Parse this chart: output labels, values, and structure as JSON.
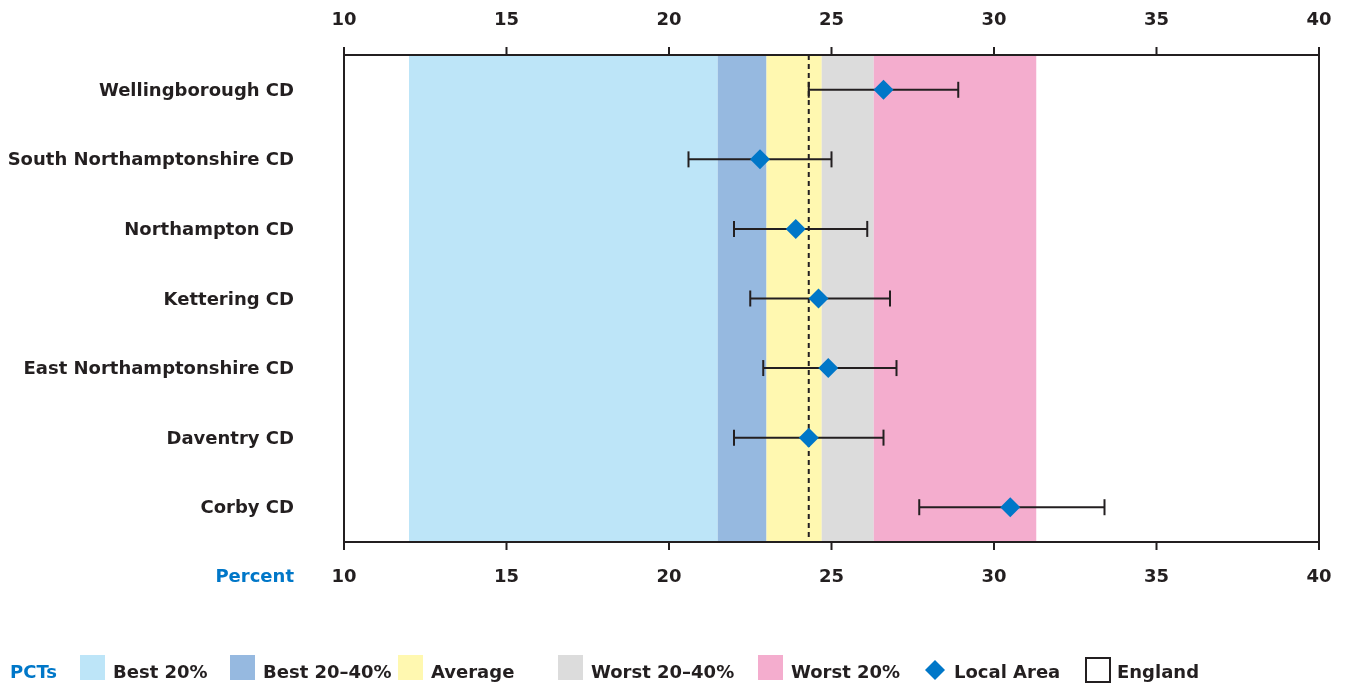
{
  "chart_data": {
    "type": "scatter",
    "orientation": "horizontal",
    "xlabel": "Percent",
    "legend_title": "PCTs",
    "legend": "bottom",
    "marker": "diamond",
    "categories": [
      "Wellingborough CD",
      "South Northamptonshire CD",
      "Northampton CD",
      "Kettering CD",
      "East Northamptonshire CD",
      "Daventry CD",
      "Corby CD"
    ],
    "series": [
      {
        "name": "Local Area",
        "color": "#0077c8",
        "values": [
          26.6,
          22.8,
          23.9,
          24.6,
          24.9,
          24.3,
          30.5
        ],
        "errors": [
          [
            24.3,
            28.9
          ],
          [
            20.6,
            25.0
          ],
          [
            22.0,
            26.1
          ],
          [
            22.5,
            26.8
          ],
          [
            22.9,
            27.0
          ],
          [
            22.0,
            26.6
          ],
          [
            27.7,
            33.4
          ]
        ]
      }
    ],
    "xlim": [
      10,
      40
    ],
    "xticks": [
      10,
      15,
      20,
      25,
      30,
      35,
      40
    ],
    "x2lim": [
      10,
      40
    ],
    "x2ticks": [
      10,
      15,
      20,
      25,
      30,
      35,
      40
    ],
    "bands": [
      {
        "axis": "x",
        "from": 12.0,
        "to": 21.5,
        "label": "Best 20%",
        "color": "#bde5f8"
      },
      {
        "axis": "x",
        "from": 21.5,
        "to": 23.0,
        "label": "Best 20–40%",
        "color": "#96b9e0"
      },
      {
        "axis": "x",
        "from": 23.0,
        "to": 24.7,
        "label": "Average",
        "color": "#fff8b0"
      },
      {
        "axis": "x",
        "from": 24.7,
        "to": 26.3,
        "label": "Worst 20–40%",
        "color": "#dcdcdc"
      },
      {
        "axis": "x",
        "from": 26.3,
        "to": 31.3,
        "label": "Worst 20%",
        "color": "#f4adce"
      }
    ],
    "ref_lines": [
      {
        "axis": "x",
        "value": 24.3,
        "label": "England",
        "color": "#231f20",
        "line_style": "dashed"
      }
    ]
  }
}
